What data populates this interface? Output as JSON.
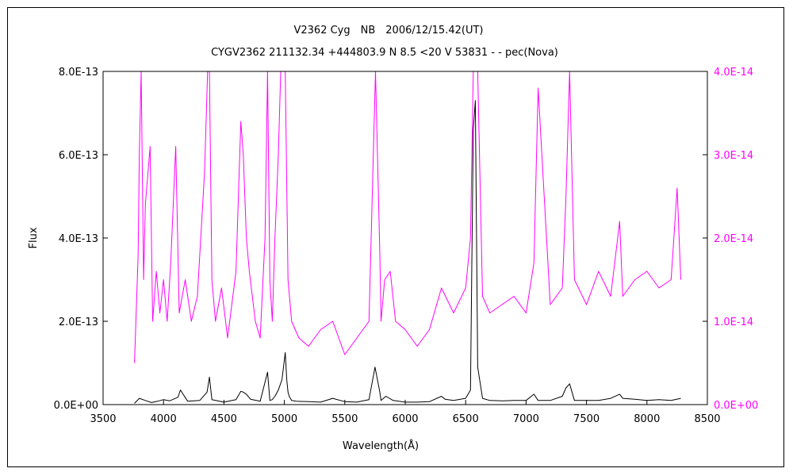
{
  "chart_data": {
    "type": "line",
    "title": "V2362 Cyg　NB　2006/12/15.42(UT)",
    "subtitle": "CYGV2362 211132.34 +444803.9 N 8.5 <20 V 53831 - - pec(Nova)",
    "xlabel": "Wavelength(Å)",
    "ylabel": "Flux",
    "xlim": [
      3500,
      8500
    ],
    "ylim": [
      0,
      8e-13
    ],
    "y2lim": [
      0,
      4e-14
    ],
    "grid": false,
    "x_ticks": [
      "3500",
      "4000",
      "4500",
      "5000",
      "5500",
      "6000",
      "6500",
      "7000",
      "7500",
      "8000",
      "8500"
    ],
    "y_ticks": [
      "0.0E+00",
      "2.0E-13",
      "4.0E-13",
      "6.0E-13",
      "8.0E-13"
    ],
    "y2_ticks": [
      "0.0E+00",
      "1.0E-14",
      "2.0E-14",
      "3.0E-14",
      "4.0E-14"
    ],
    "colors": {
      "primary": "#000000",
      "secondary": "#ff00ff"
    },
    "series": [
      {
        "axis": "left",
        "color": "#000000",
        "x": [
          3760,
          3800,
          3850,
          3900,
          3950,
          4000,
          4050,
          4100,
          4120,
          4140,
          4200,
          4300,
          4360,
          4380,
          4400,
          4500,
          4600,
          4640,
          4660,
          4686,
          4720,
          4800,
          4861,
          4880,
          4900,
          4922,
          4950,
          4980,
          5007,
          5020,
          5030,
          5040,
          5060,
          5100,
          5200,
          5300,
          5400,
          5500,
          5600,
          5700,
          5750,
          5790,
          5800,
          5840,
          5900,
          6000,
          6100,
          6200,
          6300,
          6330,
          6400,
          6500,
          6540,
          6563,
          6580,
          6600,
          6640,
          6700,
          6800,
          6900,
          7000,
          7065,
          7100,
          7200,
          7300,
          7330,
          7360,
          7400,
          7500,
          7600,
          7700,
          7774,
          7800,
          7900,
          8000,
          8100,
          8200,
          8280
        ],
        "y": [
          3e-15,
          1.5e-14,
          1e-14,
          5e-15,
          8e-15,
          1.2e-14,
          9e-15,
          1.5e-14,
          1.8e-14,
          3.5e-14,
          8e-15,
          1e-14,
          3e-14,
          6.6e-14,
          1.2e-14,
          6e-15,
          1.2e-14,
          3.2e-14,
          3e-14,
          2.5e-14,
          1.3e-14,
          8e-15,
          7.8e-14,
          1e-14,
          1.2e-14,
          2e-14,
          3.5e-14,
          6e-14,
          1.25e-13,
          6e-14,
          3e-14,
          2e-14,
          1e-14,
          8e-15,
          7e-15,
          6e-15,
          1.5e-14,
          7e-15,
          6e-15,
          1.2e-14,
          9e-14,
          3e-14,
          1e-14,
          2e-14,
          1e-14,
          6e-15,
          6e-15,
          7e-15,
          2e-14,
          1.3e-14,
          1e-14,
          1.5e-14,
          3.5e-14,
          6.6e-13,
          7.3e-13,
          9e-14,
          1.5e-14,
          1e-14,
          9e-15,
          1e-14,
          1e-14,
          2.5e-14,
          1e-14,
          1e-14,
          2e-14,
          4e-14,
          5e-14,
          1e-14,
          1e-14,
          1e-14,
          1.5e-14,
          2.5e-14,
          1.5e-14,
          1.3e-14,
          1e-14,
          1.2e-14,
          1e-14,
          1.5e-14
        ]
      },
      {
        "axis": "right",
        "color": "#ff00ff",
        "x": [
          3760,
          3790,
          3800,
          3815,
          3835,
          3850,
          3889,
          3910,
          3940,
          3970,
          4000,
          4030,
          4060,
          4101,
          4130,
          4180,
          4230,
          4280,
          4340,
          4365,
          4380,
          4400,
          4430,
          4480,
          4530,
          4600,
          4640,
          4660,
          4686,
          4710,
          4760,
          4800,
          4840,
          4861,
          4880,
          4900,
          4922,
          4950,
          4970,
          5007,
          5030,
          5060,
          5120,
          5200,
          5300,
          5400,
          5500,
          5600,
          5700,
          5754,
          5790,
          5800,
          5830,
          5876,
          5920,
          6000,
          6100,
          6200,
          6300,
          6400,
          6500,
          6540,
          6563,
          6600,
          6640,
          6700,
          6800,
          6900,
          7000,
          7065,
          7100,
          7200,
          7300,
          7330,
          7360,
          7400,
          7500,
          7600,
          7700,
          7774,
          7800,
          7900,
          8000,
          8100,
          8200,
          8250,
          8280
        ],
        "y": [
          5e-15,
          1.8e-14,
          3e-14,
          4.5e-14,
          1.5e-14,
          2.4e-14,
          3.1e-14,
          1e-14,
          1.6e-14,
          1.1e-14,
          1.5e-14,
          1e-14,
          1.7e-14,
          3.1e-14,
          1.1e-14,
          1.5e-14,
          1e-14,
          1.3e-14,
          2.8e-14,
          4e-14,
          4.5e-14,
          1.5e-14,
          1e-14,
          1.4e-14,
          8e-15,
          1.6e-14,
          3.4e-14,
          3e-14,
          2e-14,
          1.6e-14,
          1e-14,
          8e-15,
          2e-14,
          4.5e-14,
          1.5e-14,
          1e-14,
          2e-14,
          3e-14,
          4.8e-14,
          8e-14,
          1.5e-14,
          1e-14,
          8e-15,
          7e-15,
          9e-15,
          1e-14,
          6e-15,
          8e-15,
          1e-14,
          6e-14,
          1.8e-14,
          1e-14,
          1.5e-14,
          1.6e-14,
          1e-14,
          9e-15,
          7e-15,
          9e-15,
          1.4e-14,
          1.1e-14,
          1.4e-14,
          2e-14,
          4.5e-14,
          4.5e-14,
          1.3e-14,
          1.1e-14,
          1.2e-14,
          1.3e-14,
          1.1e-14,
          1.7e-14,
          3.8e-14,
          1.2e-14,
          1.4e-14,
          2.5e-14,
          4.5e-14,
          1.5e-14,
          1.2e-14,
          1.6e-14,
          1.3e-14,
          2.2e-14,
          1.3e-14,
          1.5e-14,
          1.6e-14,
          1.4e-14,
          1.5e-14,
          2.6e-14,
          1.5e-14
        ]
      }
    ]
  }
}
